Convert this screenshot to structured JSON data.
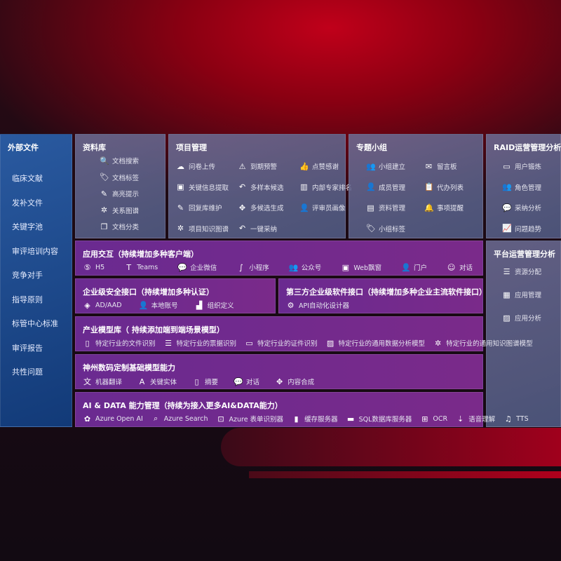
{
  "sidebar": {
    "title": "外部文件",
    "items": [
      "临床文献",
      "发补文件",
      "关键字池",
      "审评培训内容",
      "竞争对手",
      "指导原则",
      "标管中心标准",
      "审评报告",
      "共性问题"
    ]
  },
  "library": {
    "title": "资料库",
    "items": [
      {
        "icon": "file-search",
        "label": "文档搜索"
      },
      {
        "icon": "tag",
        "label": "文档标签"
      },
      {
        "icon": "pen",
        "label": "高亮提示"
      },
      {
        "icon": "graph",
        "label": "关系图谱"
      },
      {
        "icon": "copy",
        "label": "文档分类"
      }
    ]
  },
  "project": {
    "title": "项目管理",
    "items": [
      {
        "icon": "cloud-upload",
        "label": "问卷上传"
      },
      {
        "icon": "alarm",
        "label": "到期预警"
      },
      {
        "icon": "thumbs-up",
        "label": "点赞感谢"
      },
      {
        "icon": "window",
        "label": "关键信息提取"
      },
      {
        "icon": "reply",
        "label": "多样本候选"
      },
      {
        "icon": "podium",
        "label": "内部专家排名"
      },
      {
        "icon": "edit",
        "label": "回复库维护"
      },
      {
        "icon": "puzzle",
        "label": "多候选生成"
      },
      {
        "icon": "user",
        "label": "评审员画像"
      },
      {
        "icon": "graph",
        "label": "项目知识图谱"
      },
      {
        "icon": "reply",
        "label": "一键采纳"
      }
    ]
  },
  "group": {
    "title": "专题小组",
    "items": [
      {
        "icon": "users",
        "label": "小组建立"
      },
      {
        "icon": "bbs",
        "label": "留言板"
      },
      {
        "icon": "user-add",
        "label": "成员管理"
      },
      {
        "icon": "clipboard",
        "label": "代办列表"
      },
      {
        "icon": "folder",
        "label": "资料管理"
      },
      {
        "icon": "bell",
        "label": "事项提醒"
      },
      {
        "icon": "tag",
        "label": "小组标签"
      }
    ]
  },
  "raid": {
    "title": "RAID运营管理分析",
    "items": [
      {
        "icon": "id-card",
        "label": "用户锻炼"
      },
      {
        "icon": "users",
        "label": "角色管理"
      },
      {
        "icon": "qa",
        "label": "采纳分析"
      },
      {
        "icon": "trend",
        "label": "问题趋势"
      }
    ]
  },
  "platform": {
    "title": "平台运营管理分析",
    "items": [
      {
        "icon": "checklist",
        "label": "资源分配"
      },
      {
        "icon": "apps",
        "label": "应用管理"
      },
      {
        "icon": "chart",
        "label": "应用分析"
      }
    ]
  },
  "app_interaction": {
    "title": "应用交互（持续增加多种客户端）",
    "items": [
      {
        "icon": "html5",
        "label": "H5"
      },
      {
        "icon": "teams",
        "label": "Teams"
      },
      {
        "icon": "wechat",
        "label": "企业微信"
      },
      {
        "icon": "miniapp",
        "label": "小程序"
      },
      {
        "icon": "users",
        "label": "公众号"
      },
      {
        "icon": "window",
        "label": "Web飘窗"
      },
      {
        "icon": "user",
        "label": "门户"
      },
      {
        "icon": "chat-users",
        "label": "对话"
      }
    ]
  },
  "security": {
    "title": "企业级安全接口（持续增加多种认证）",
    "items": [
      {
        "icon": "diamond",
        "label": "AD/AAD"
      },
      {
        "icon": "user-key",
        "label": "本地账号"
      },
      {
        "icon": "org",
        "label": "组织定义"
      }
    ]
  },
  "third_party": {
    "title": "第三方企业级软件接口（持续增加多种企业主流软件接口）",
    "items": [
      {
        "icon": "gear",
        "label": "API自动化设计器"
      }
    ]
  },
  "industry": {
    "title": "产业模型库（ 持续添加端到端场景模型）",
    "items": [
      {
        "icon": "file",
        "label": "特定行业的文件识别"
      },
      {
        "icon": "receipt",
        "label": "特定行业的票据识别"
      },
      {
        "icon": "id-card",
        "label": "特定行业的证件识别"
      },
      {
        "icon": "chart",
        "label": "特定行业的通用数据分析模型"
      },
      {
        "icon": "graph",
        "label": "特定行业的通用知识图谱模型"
      }
    ]
  },
  "custom_model": {
    "title": "神州数码定制基础模型能力",
    "items": [
      {
        "icon": "translate",
        "label": "机器翻译"
      },
      {
        "icon": "shield-a",
        "label": "关键实体"
      },
      {
        "icon": "doc",
        "label": "摘要"
      },
      {
        "icon": "chat",
        "label": "对话"
      },
      {
        "icon": "puzzle",
        "label": "内容合成"
      }
    ]
  },
  "ai_data": {
    "title": "AI & DATA 能力管理（持续为接入更多AI&DATA能力）",
    "items": [
      {
        "icon": "openai",
        "label": "Azure Open AI"
      },
      {
        "icon": "search-doc",
        "label": "Azure Search"
      },
      {
        "icon": "form",
        "label": "Azure 表单识别器"
      },
      {
        "icon": "cache",
        "label": "缓存服务器"
      },
      {
        "icon": "sql",
        "label": "SQL数据库服务器"
      },
      {
        "icon": "ocr",
        "label": "OCR"
      },
      {
        "icon": "voice",
        "label": "语音理解"
      },
      {
        "icon": "tts",
        "label": "TTS"
      }
    ]
  }
}
